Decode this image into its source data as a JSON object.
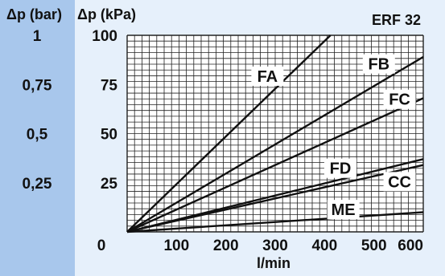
{
  "chart_data": {
    "type": "line",
    "title": "ERF 32",
    "xlabel": "l/min",
    "ylabel": "Δp (kPa)",
    "y2label": "Δp (bar)",
    "xlim": [
      0,
      600
    ],
    "ylim": [
      0,
      100
    ],
    "grid": true,
    "x_ticks": [
      "0",
      "100",
      "200",
      "300",
      "400",
      "500",
      "600"
    ],
    "y_ticks": [
      "100",
      "75",
      "50",
      "25"
    ],
    "y2_ticks": [
      "1",
      "0,75",
      "0,5",
      "0,25"
    ],
    "series": [
      {
        "name": "FA",
        "x": [
          0,
          412
        ],
        "y": [
          0,
          100
        ]
      },
      {
        "name": "FB",
        "x": [
          0,
          600
        ],
        "y": [
          0,
          89
        ]
      },
      {
        "name": "FC",
        "x": [
          0,
          600
        ],
        "y": [
          0,
          68
        ]
      },
      {
        "name": "FD",
        "x": [
          0,
          600
        ],
        "y": [
          0,
          37
        ]
      },
      {
        "name": "CC",
        "x": [
          0,
          600
        ],
        "y": [
          0,
          34
        ]
      },
      {
        "name": "ME",
        "x": [
          0,
          600
        ],
        "y": [
          0,
          10
        ]
      }
    ]
  },
  "colors": {
    "background": "#e6f0fb",
    "left_band": "#a8c7ec",
    "plot_area": "#ffffff",
    "lines": "#111111"
  }
}
